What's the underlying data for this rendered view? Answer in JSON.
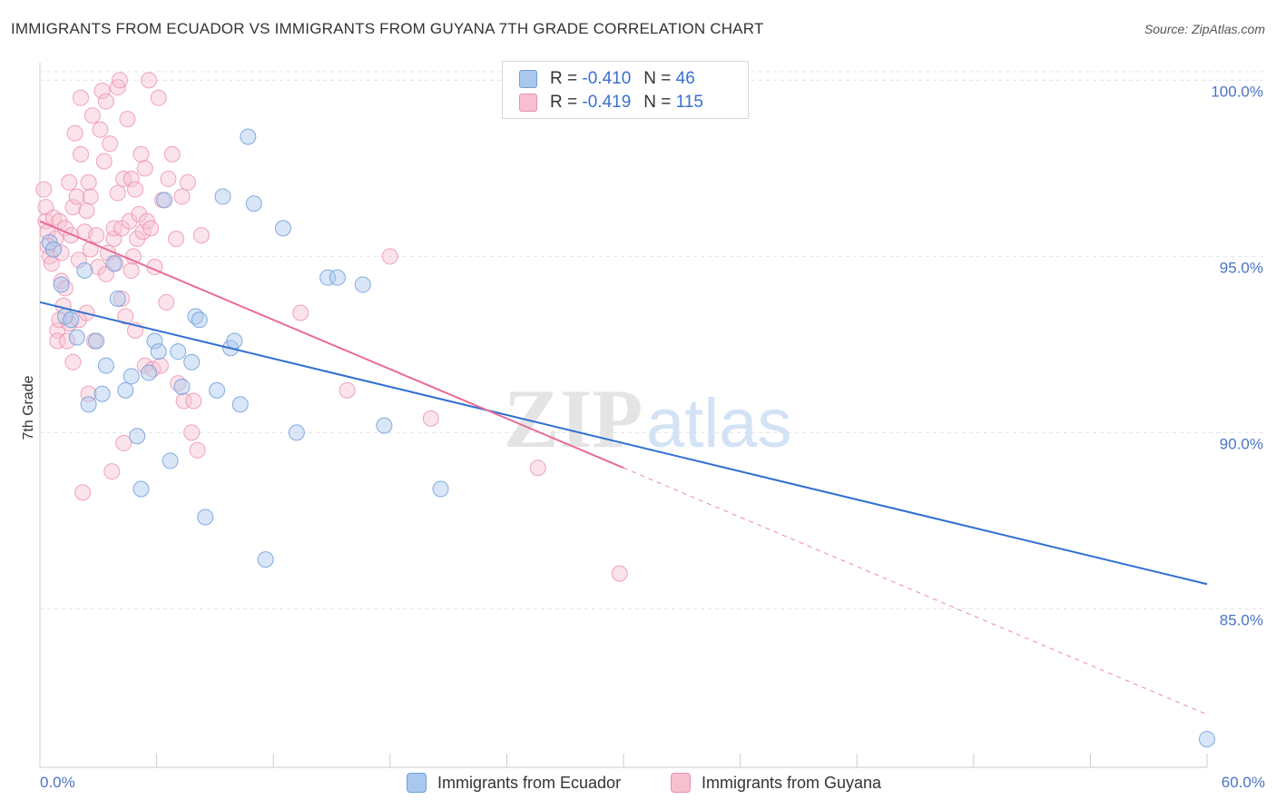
{
  "header": {
    "title": "IMMIGRANTS FROM ECUADOR VS IMMIGRANTS FROM GUYANA 7TH GRADE CORRELATION CHART",
    "source": "Source: ZipAtlas.com"
  },
  "watermark": {
    "zip": "ZIP",
    "atlas": "atlas"
  },
  "legend": {
    "r_label": "R =",
    "n_label": "N =",
    "ecuador": {
      "r": "-0.410",
      "n": "46"
    },
    "guyana": {
      "r": "-0.419",
      "n": "115"
    }
  },
  "bottom_legend": {
    "ecuador_label": "Immigrants from Ecuador",
    "guyana_label": "Immigrants from Guyana"
  },
  "colors": {
    "ecuador_fill": "#aac8ee",
    "ecuador_stroke": "#6f9edc",
    "ecuador_line": "#2f6fd0",
    "guyana_fill": "#f7c0d0",
    "guyana_stroke": "#ec8fac",
    "guyana_line": "#e86a97",
    "tick_color": "#4a74c4"
  },
  "chart_data": {
    "type": "scatter",
    "title": "IMMIGRANTS FROM ECUADOR VS IMMIGRANTS FROM GUYANA 7TH GRADE CORRELATION CHART",
    "xlabel": "",
    "ylabel": "7th Grade",
    "xlim": [
      0,
      60
    ],
    "ylim": [
      80.5,
      100.5
    ],
    "x_tick_labels": [
      "0.0%",
      "60.0%"
    ],
    "y_ticks": [
      85,
      90,
      95,
      100
    ],
    "y_tick_labels": [
      "85.0%",
      "90.0%",
      "95.0%",
      "100.0%"
    ],
    "grid": true,
    "legend_position": "top-center",
    "series": [
      {
        "name": "Immigrants from Ecuador",
        "trend": {
          "x": [
            0,
            60
          ],
          "y": [
            93.7,
            85.7
          ]
        },
        "points": [
          [
            0.5,
            95.4
          ],
          [
            0.7,
            95.2
          ],
          [
            1.1,
            94.2
          ],
          [
            1.3,
            93.3
          ],
          [
            1.6,
            93.2
          ],
          [
            1.9,
            92.7
          ],
          [
            2.3,
            94.6
          ],
          [
            2.5,
            90.8
          ],
          [
            2.9,
            92.6
          ],
          [
            3.2,
            91.1
          ],
          [
            3.4,
            91.9
          ],
          [
            3.8,
            94.8
          ],
          [
            4.0,
            93.8
          ],
          [
            4.4,
            91.2
          ],
          [
            4.7,
            91.6
          ],
          [
            5.0,
            89.9
          ],
          [
            5.2,
            88.4
          ],
          [
            5.6,
            91.7
          ],
          [
            5.9,
            92.6
          ],
          [
            6.1,
            92.3
          ],
          [
            6.4,
            96.6
          ],
          [
            6.7,
            89.2
          ],
          [
            7.1,
            92.3
          ],
          [
            7.3,
            91.3
          ],
          [
            7.8,
            92.0
          ],
          [
            8.0,
            93.3
          ],
          [
            8.2,
            93.2
          ],
          [
            8.5,
            87.6
          ],
          [
            9.1,
            91.2
          ],
          [
            9.4,
            96.7
          ],
          [
            9.8,
            92.4
          ],
          [
            10.0,
            92.6
          ],
          [
            10.3,
            90.8
          ],
          [
            10.7,
            98.4
          ],
          [
            11.0,
            96.5
          ],
          [
            11.6,
            86.4
          ],
          [
            12.5,
            95.8
          ],
          [
            13.2,
            90.0
          ],
          [
            14.8,
            94.4
          ],
          [
            15.3,
            94.4
          ],
          [
            16.6,
            94.2
          ],
          [
            17.7,
            90.2
          ],
          [
            20.6,
            88.4
          ],
          [
            60.0,
            81.3
          ]
        ]
      },
      {
        "name": "Immigrants from Guyana",
        "trend": {
          "x": [
            0,
            30
          ],
          "y": [
            96.0,
            89.0
          ]
        },
        "trend_dashed": {
          "x": [
            30,
            60
          ],
          "y": [
            89.0,
            82.0
          ]
        },
        "points": [
          [
            0.2,
            96.9
          ],
          [
            0.3,
            96.4
          ],
          [
            0.3,
            96.0
          ],
          [
            0.4,
            95.7
          ],
          [
            0.4,
            95.3
          ],
          [
            0.5,
            95.0
          ],
          [
            0.6,
            94.8
          ],
          [
            0.7,
            96.1
          ],
          [
            0.8,
            95.5
          ],
          [
            0.9,
            92.9
          ],
          [
            0.9,
            92.6
          ],
          [
            1.0,
            96.0
          ],
          [
            1.0,
            93.2
          ],
          [
            1.1,
            95.1
          ],
          [
            1.1,
            94.3
          ],
          [
            1.2,
            93.6
          ],
          [
            1.3,
            95.8
          ],
          [
            1.3,
            94.1
          ],
          [
            1.4,
            92.6
          ],
          [
            1.5,
            97.1
          ],
          [
            1.5,
            93.1
          ],
          [
            1.6,
            95.6
          ],
          [
            1.7,
            96.4
          ],
          [
            1.7,
            92.0
          ],
          [
            1.8,
            98.5
          ],
          [
            1.9,
            96.7
          ],
          [
            2.0,
            94.9
          ],
          [
            2.0,
            93.2
          ],
          [
            2.1,
            97.9
          ],
          [
            2.1,
            99.5
          ],
          [
            2.2,
            88.3
          ],
          [
            2.3,
            95.7
          ],
          [
            2.4,
            96.3
          ],
          [
            2.4,
            93.4
          ],
          [
            2.5,
            91.1
          ],
          [
            2.5,
            97.1
          ],
          [
            2.6,
            95.2
          ],
          [
            2.6,
            96.7
          ],
          [
            2.7,
            99.0
          ],
          [
            2.8,
            92.6
          ],
          [
            2.9,
            95.6
          ],
          [
            3.0,
            94.7
          ],
          [
            3.1,
            98.6
          ],
          [
            3.2,
            99.7
          ],
          [
            3.3,
            97.7
          ],
          [
            3.4,
            99.4
          ],
          [
            3.4,
            94.5
          ],
          [
            3.5,
            95.1
          ],
          [
            3.6,
            98.2
          ],
          [
            3.7,
            88.9
          ],
          [
            3.8,
            95.5
          ],
          [
            3.8,
            95.8
          ],
          [
            3.9,
            94.8
          ],
          [
            4.0,
            99.8
          ],
          [
            4.0,
            96.8
          ],
          [
            4.1,
            100.0
          ],
          [
            4.2,
            95.8
          ],
          [
            4.2,
            93.8
          ],
          [
            4.3,
            97.2
          ],
          [
            4.3,
            89.7
          ],
          [
            4.4,
            93.3
          ],
          [
            4.5,
            98.9
          ],
          [
            4.6,
            96.0
          ],
          [
            4.7,
            94.6
          ],
          [
            4.7,
            97.2
          ],
          [
            4.8,
            95.0
          ],
          [
            4.9,
            92.9
          ],
          [
            4.9,
            96.9
          ],
          [
            5.0,
            95.5
          ],
          [
            5.1,
            96.2
          ],
          [
            5.2,
            97.9
          ],
          [
            5.3,
            95.7
          ],
          [
            5.4,
            91.9
          ],
          [
            5.4,
            97.5
          ],
          [
            5.5,
            96.0
          ],
          [
            5.6,
            100.0
          ],
          [
            5.7,
            95.8
          ],
          [
            5.8,
            91.8
          ],
          [
            5.9,
            94.7
          ],
          [
            6.1,
            99.5
          ],
          [
            6.2,
            91.9
          ],
          [
            6.3,
            96.6
          ],
          [
            6.5,
            93.7
          ],
          [
            6.6,
            97.2
          ],
          [
            6.8,
            97.9
          ],
          [
            7.0,
            95.5
          ],
          [
            7.1,
            91.4
          ],
          [
            7.3,
            96.7
          ],
          [
            7.4,
            90.9
          ],
          [
            7.6,
            97.1
          ],
          [
            7.8,
            90.0
          ],
          [
            7.9,
            90.9
          ],
          [
            8.1,
            89.5
          ],
          [
            8.3,
            95.6
          ],
          [
            13.4,
            93.4
          ],
          [
            15.8,
            91.2
          ],
          [
            18.0,
            95.0
          ],
          [
            20.1,
            90.4
          ],
          [
            25.6,
            89.0
          ],
          [
            29.8,
            86.0
          ]
        ]
      }
    ]
  }
}
